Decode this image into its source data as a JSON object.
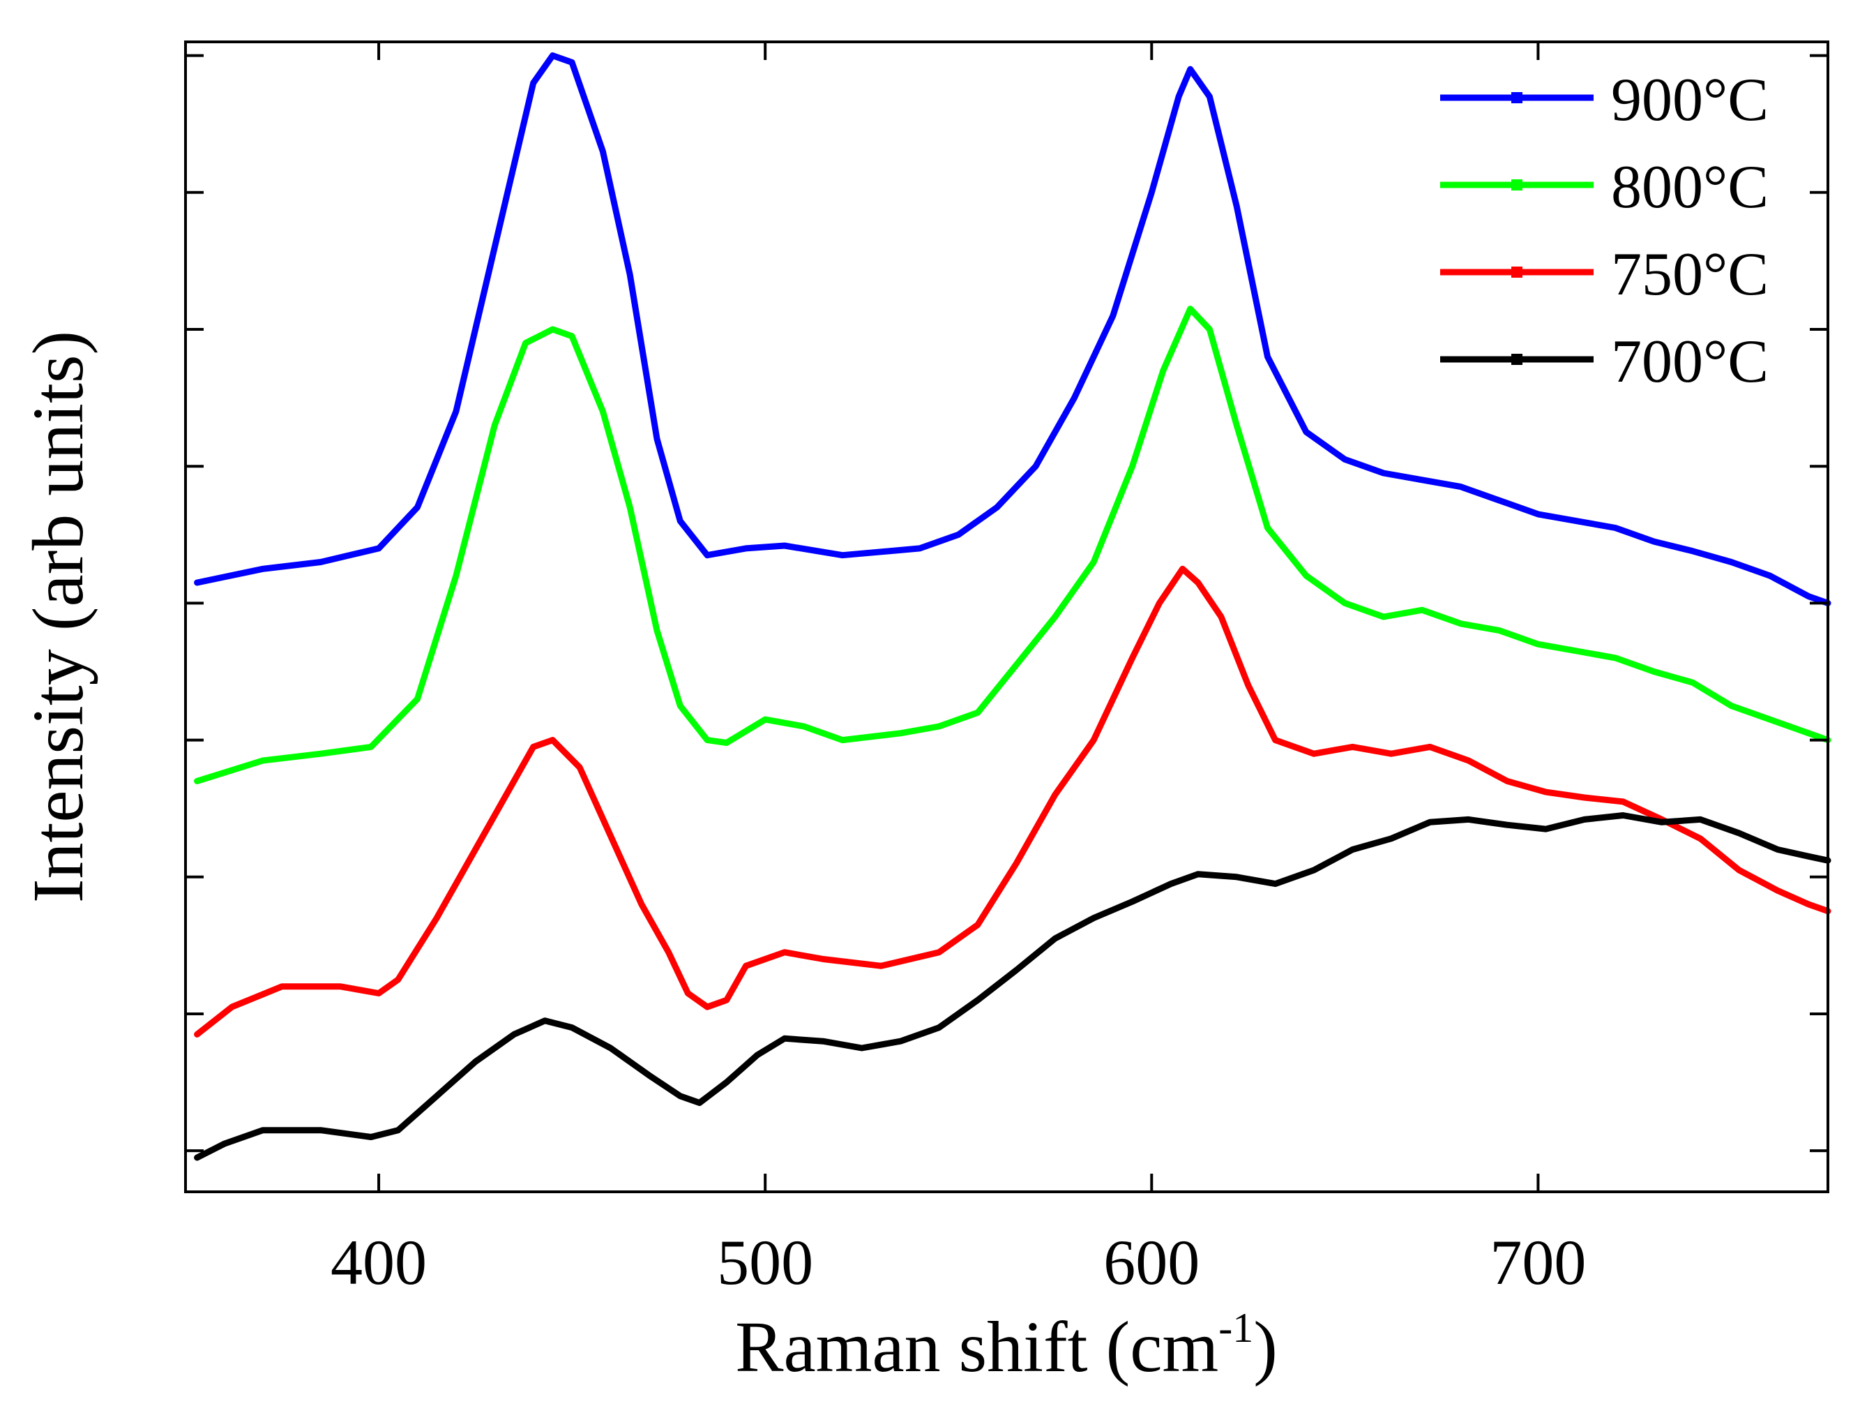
{
  "chart_data": {
    "type": "line",
    "title": "",
    "xlabel_main": "Raman shift (cm",
    "xlabel_sup": "-1",
    "xlabel_tail": ")",
    "ylabel": "Intensity (arb units)",
    "xlim": [
      350,
      775
    ],
    "ylim": [
      0,
      8.4
    ],
    "x_ticks": [
      400,
      500,
      600,
      700
    ],
    "x_tick_labels": [
      "400",
      "500",
      "600",
      "700"
    ],
    "y_tick_values": [
      0.3,
      1.3,
      2.3,
      3.3,
      4.3,
      5.3,
      6.3,
      7.3,
      8.3
    ],
    "y_tick_labels_shown": false,
    "legend_position": "top-right",
    "series": [
      {
        "name": "900°C",
        "color": "#0000ff",
        "points": [
          [
            353,
            4.45
          ],
          [
            370,
            4.55
          ],
          [
            385,
            4.6
          ],
          [
            400,
            4.7
          ],
          [
            410,
            5.0
          ],
          [
            420,
            5.7
          ],
          [
            430,
            6.9
          ],
          [
            440,
            8.1
          ],
          [
            445,
            8.3
          ],
          [
            450,
            8.25
          ],
          [
            458,
            7.6
          ],
          [
            465,
            6.7
          ],
          [
            472,
            5.5
          ],
          [
            478,
            4.9
          ],
          [
            485,
            4.65
          ],
          [
            495,
            4.7
          ],
          [
            505,
            4.72
          ],
          [
            520,
            4.65
          ],
          [
            540,
            4.7
          ],
          [
            550,
            4.8
          ],
          [
            560,
            5.0
          ],
          [
            570,
            5.3
          ],
          [
            580,
            5.8
          ],
          [
            590,
            6.4
          ],
          [
            600,
            7.3
          ],
          [
            607,
            8.0
          ],
          [
            610,
            8.2
          ],
          [
            615,
            8.0
          ],
          [
            622,
            7.2
          ],
          [
            630,
            6.1
          ],
          [
            640,
            5.55
          ],
          [
            650,
            5.35
          ],
          [
            660,
            5.25
          ],
          [
            670,
            5.2
          ],
          [
            680,
            5.15
          ],
          [
            690,
            5.05
          ],
          [
            700,
            4.95
          ],
          [
            710,
            4.9
          ],
          [
            720,
            4.85
          ],
          [
            730,
            4.75
          ],
          [
            740,
            4.68
          ],
          [
            750,
            4.6
          ],
          [
            760,
            4.5
          ],
          [
            770,
            4.35
          ],
          [
            775,
            4.3
          ]
        ]
      },
      {
        "name": "800°C",
        "color": "#00ff00",
        "points": [
          [
            353,
            3.0
          ],
          [
            370,
            3.15
          ],
          [
            385,
            3.2
          ],
          [
            398,
            3.25
          ],
          [
            410,
            3.6
          ],
          [
            420,
            4.5
          ],
          [
            430,
            5.6
          ],
          [
            438,
            6.2
          ],
          [
            445,
            6.3
          ],
          [
            450,
            6.25
          ],
          [
            458,
            5.7
          ],
          [
            465,
            5.0
          ],
          [
            472,
            4.1
          ],
          [
            478,
            3.55
          ],
          [
            485,
            3.3
          ],
          [
            490,
            3.28
          ],
          [
            500,
            3.45
          ],
          [
            510,
            3.4
          ],
          [
            520,
            3.3
          ],
          [
            535,
            3.35
          ],
          [
            545,
            3.4
          ],
          [
            555,
            3.5
          ],
          [
            565,
            3.85
          ],
          [
            575,
            4.2
          ],
          [
            585,
            4.6
          ],
          [
            595,
            5.3
          ],
          [
            603,
            6.0
          ],
          [
            610,
            6.45
          ],
          [
            615,
            6.3
          ],
          [
            622,
            5.6
          ],
          [
            630,
            4.85
          ],
          [
            640,
            4.5
          ],
          [
            650,
            4.3
          ],
          [
            660,
            4.2
          ],
          [
            670,
            4.25
          ],
          [
            680,
            4.15
          ],
          [
            690,
            4.1
          ],
          [
            700,
            4.0
          ],
          [
            710,
            3.95
          ],
          [
            720,
            3.9
          ],
          [
            730,
            3.8
          ],
          [
            740,
            3.72
          ],
          [
            750,
            3.55
          ],
          [
            760,
            3.45
          ],
          [
            770,
            3.35
          ],
          [
            775,
            3.3
          ]
        ]
      },
      {
        "name": "750°C",
        "color": "#ff0000",
        "points": [
          [
            353,
            1.15
          ],
          [
            362,
            1.35
          ],
          [
            375,
            1.5
          ],
          [
            390,
            1.5
          ],
          [
            400,
            1.45
          ],
          [
            405,
            1.55
          ],
          [
            415,
            2.0
          ],
          [
            425,
            2.5
          ],
          [
            435,
            3.0
          ],
          [
            440,
            3.25
          ],
          [
            445,
            3.3
          ],
          [
            452,
            3.1
          ],
          [
            460,
            2.6
          ],
          [
            468,
            2.1
          ],
          [
            475,
            1.75
          ],
          [
            480,
            1.45
          ],
          [
            485,
            1.35
          ],
          [
            490,
            1.4
          ],
          [
            495,
            1.65
          ],
          [
            505,
            1.75
          ],
          [
            515,
            1.7
          ],
          [
            530,
            1.65
          ],
          [
            545,
            1.75
          ],
          [
            555,
            1.95
          ],
          [
            565,
            2.4
          ],
          [
            575,
            2.9
          ],
          [
            585,
            3.3
          ],
          [
            595,
            3.9
          ],
          [
            602,
            4.3
          ],
          [
            608,
            4.55
          ],
          [
            612,
            4.45
          ],
          [
            618,
            4.2
          ],
          [
            625,
            3.7
          ],
          [
            632,
            3.3
          ],
          [
            642,
            3.2
          ],
          [
            652,
            3.25
          ],
          [
            662,
            3.2
          ],
          [
            672,
            3.25
          ],
          [
            682,
            3.15
          ],
          [
            692,
            3.0
          ],
          [
            702,
            2.92
          ],
          [
            712,
            2.88
          ],
          [
            722,
            2.85
          ],
          [
            732,
            2.72
          ],
          [
            742,
            2.58
          ],
          [
            752,
            2.35
          ],
          [
            762,
            2.2
          ],
          [
            770,
            2.1
          ],
          [
            775,
            2.05
          ]
        ]
      },
      {
        "name": "700°C",
        "color": "#000000",
        "points": [
          [
            353,
            0.25
          ],
          [
            360,
            0.35
          ],
          [
            370,
            0.45
          ],
          [
            385,
            0.45
          ],
          [
            398,
            0.4
          ],
          [
            405,
            0.45
          ],
          [
            415,
            0.7
          ],
          [
            425,
            0.95
          ],
          [
            435,
            1.15
          ],
          [
            443,
            1.25
          ],
          [
            450,
            1.2
          ],
          [
            460,
            1.05
          ],
          [
            470,
            0.85
          ],
          [
            478,
            0.7
          ],
          [
            483,
            0.65
          ],
          [
            490,
            0.8
          ],
          [
            498,
            1.0
          ],
          [
            505,
            1.12
          ],
          [
            515,
            1.1
          ],
          [
            525,
            1.05
          ],
          [
            535,
            1.1
          ],
          [
            545,
            1.2
          ],
          [
            555,
            1.4
          ],
          [
            565,
            1.62
          ],
          [
            575,
            1.85
          ],
          [
            585,
            2.0
          ],
          [
            595,
            2.12
          ],
          [
            605,
            2.25
          ],
          [
            612,
            2.32
          ],
          [
            622,
            2.3
          ],
          [
            632,
            2.25
          ],
          [
            642,
            2.35
          ],
          [
            652,
            2.5
          ],
          [
            662,
            2.58
          ],
          [
            672,
            2.7
          ],
          [
            682,
            2.72
          ],
          [
            692,
            2.68
          ],
          [
            702,
            2.65
          ],
          [
            712,
            2.72
          ],
          [
            722,
            2.75
          ],
          [
            732,
            2.7
          ],
          [
            742,
            2.72
          ],
          [
            752,
            2.62
          ],
          [
            762,
            2.5
          ],
          [
            770,
            2.45
          ],
          [
            775,
            2.42
          ]
        ]
      }
    ]
  }
}
